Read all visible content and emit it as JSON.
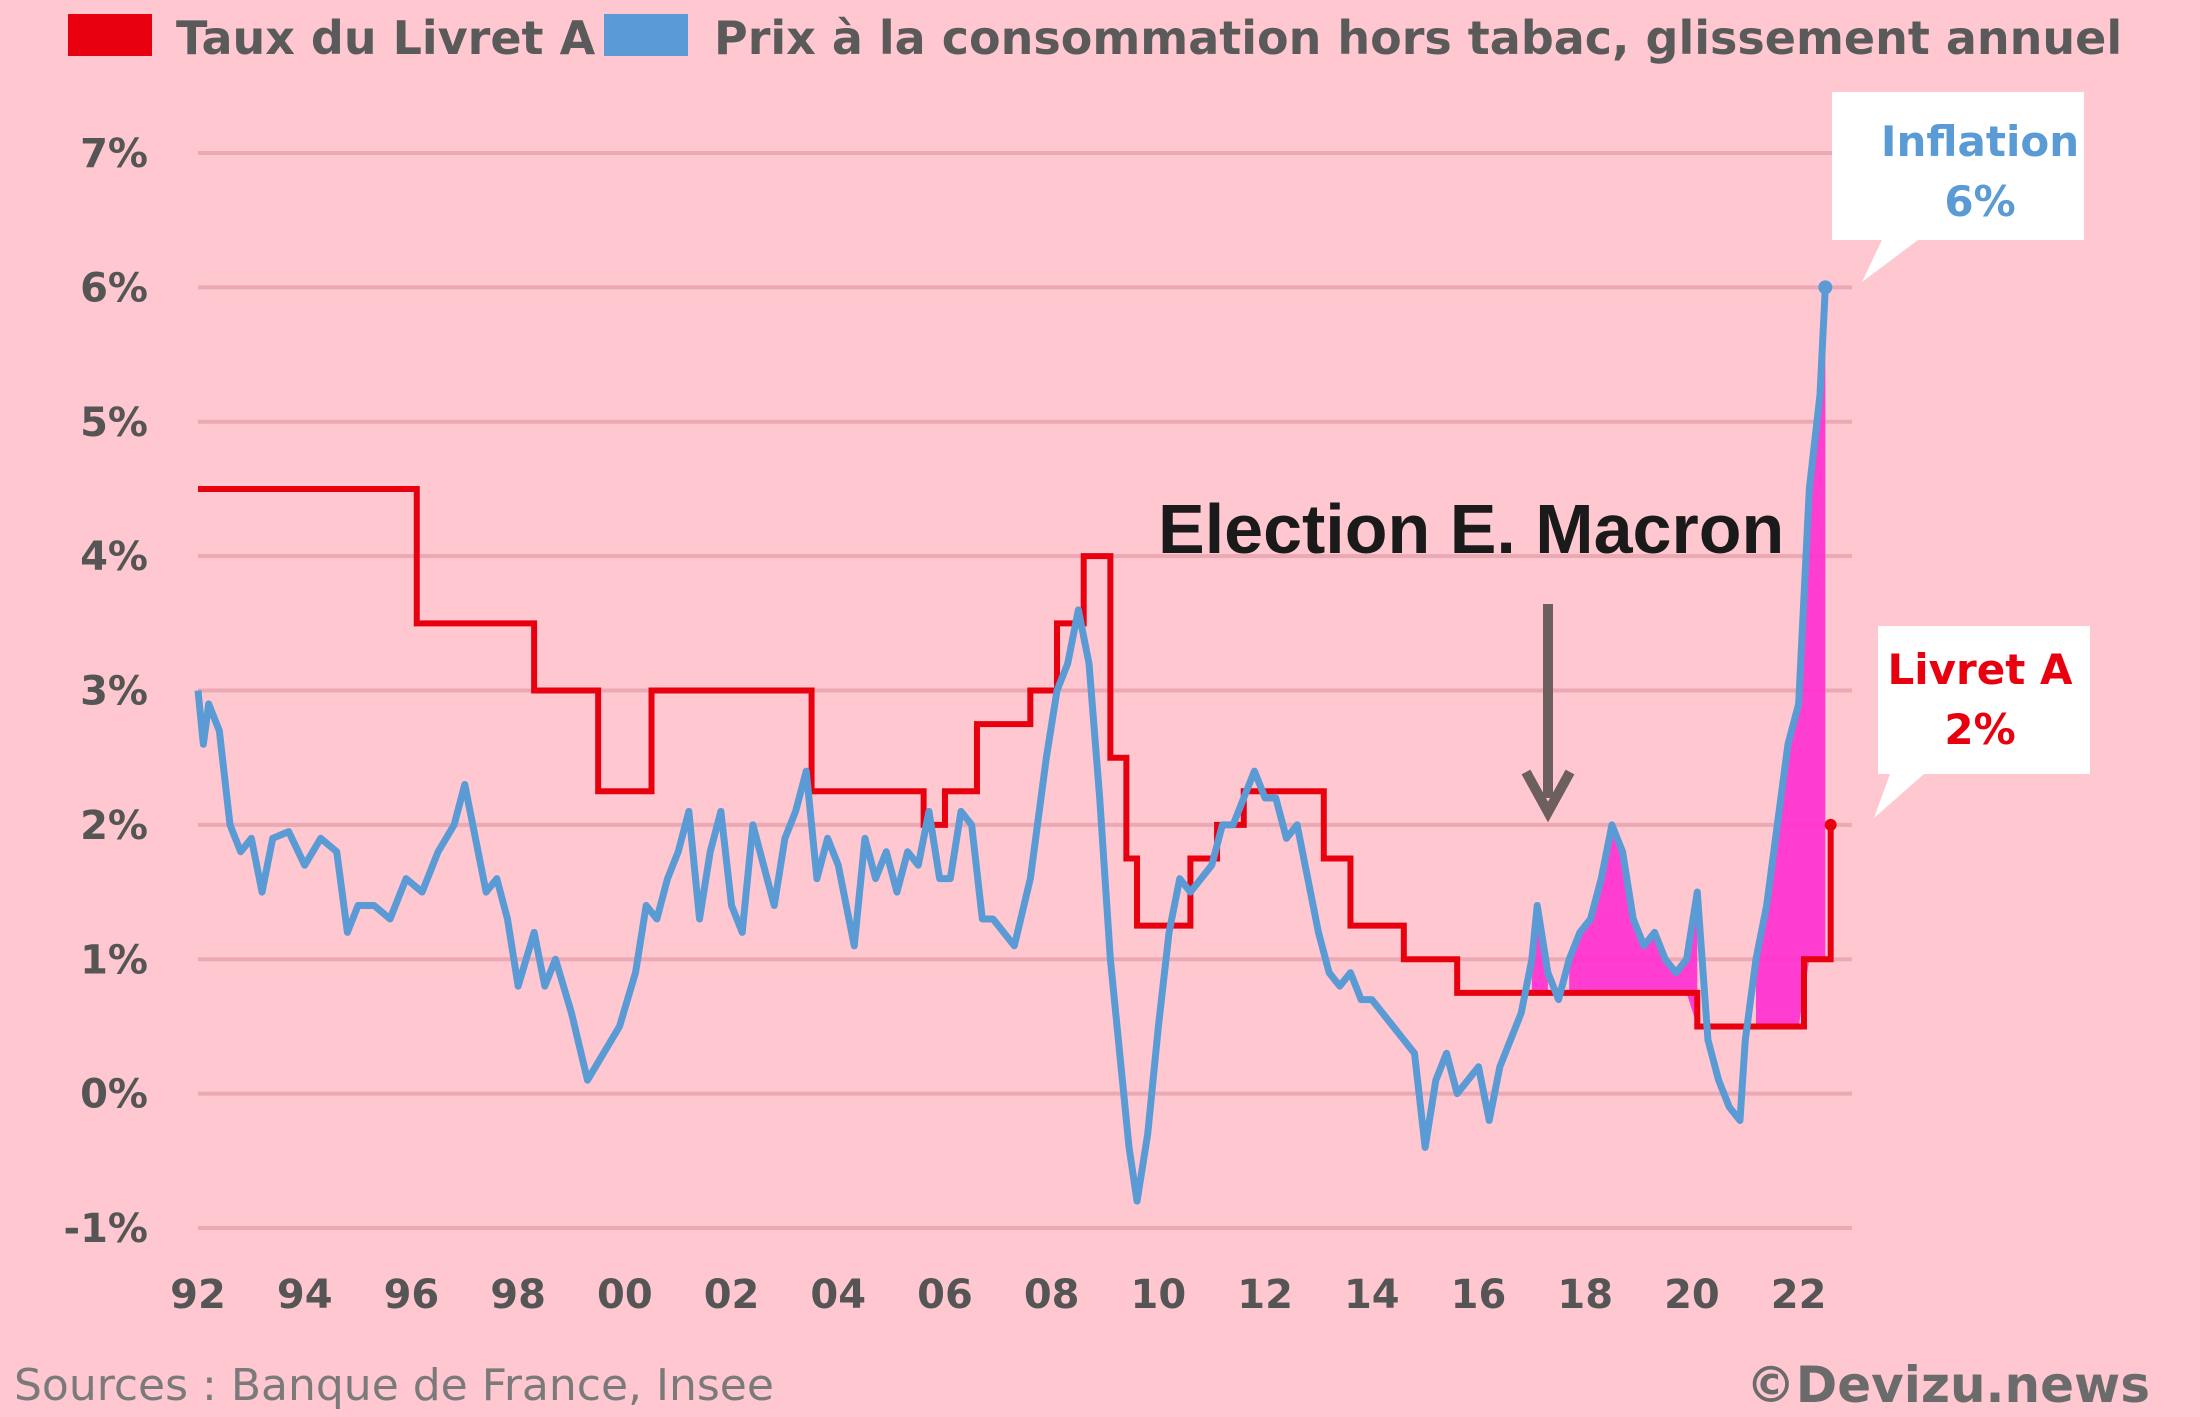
{
  "chart_data": {
    "type": "line",
    "legend": [
      {
        "label": "Taux du Livret A",
        "color": "#e8000f"
      },
      {
        "label": "Prix à la consommation hors tabac, glissement annuel",
        "color": "#5b9bd5"
      }
    ],
    "ylim": [
      -1,
      7
    ],
    "yticks": [
      -1,
      0,
      1,
      2,
      3,
      4,
      5,
      6,
      7
    ],
    "ytick_labels": [
      "-1%",
      "0%",
      "1%",
      "2%",
      "3%",
      "4%",
      "5%",
      "6%",
      "7%"
    ],
    "xlim": [
      1992,
      2023
    ],
    "xticks": [
      1992,
      1994,
      1996,
      1998,
      2000,
      2002,
      2004,
      2006,
      2008,
      2010,
      2012,
      2014,
      2016,
      2018,
      2020,
      2022
    ],
    "xtick_labels": [
      "92",
      "94",
      "96",
      "98",
      "00",
      "02",
      "04",
      "06",
      "08",
      "10",
      "12",
      "14",
      "16",
      "18",
      "20",
      "22"
    ],
    "series": [
      {
        "name": "Taux du Livret A",
        "color": "#e8000f",
        "step": true,
        "points": [
          [
            1992.0,
            4.5
          ],
          [
            1996.1,
            3.5
          ],
          [
            1998.3,
            3.0
          ],
          [
            1999.5,
            2.25
          ],
          [
            2000.5,
            3.0
          ],
          [
            2003.5,
            2.25
          ],
          [
            2005.6,
            2.0
          ],
          [
            2006.0,
            2.25
          ],
          [
            2006.6,
            2.75
          ],
          [
            2007.6,
            3.0
          ],
          [
            2008.1,
            3.5
          ],
          [
            2008.6,
            4.0
          ],
          [
            2009.1,
            2.5
          ],
          [
            2009.4,
            1.75
          ],
          [
            2009.6,
            1.25
          ],
          [
            2010.6,
            1.75
          ],
          [
            2011.1,
            2.0
          ],
          [
            2011.6,
            2.25
          ],
          [
            2013.1,
            1.75
          ],
          [
            2013.6,
            1.25
          ],
          [
            2014.6,
            1.0
          ],
          [
            2015.6,
            0.75
          ],
          [
            2020.1,
            0.5
          ],
          [
            2022.1,
            1.0
          ],
          [
            2022.6,
            2.0
          ]
        ]
      },
      {
        "name": "Prix à la consommation hors tabac, glissement annuel",
        "color": "#5b9bd5",
        "step": false,
        "points": [
          [
            1992.0,
            3.0
          ],
          [
            1992.1,
            2.6
          ],
          [
            1992.2,
            2.9
          ],
          [
            1992.4,
            2.7
          ],
          [
            1992.6,
            2.0
          ],
          [
            1992.8,
            1.8
          ],
          [
            1993.0,
            1.9
          ],
          [
            1993.2,
            1.5
          ],
          [
            1993.4,
            1.9
          ],
          [
            1993.7,
            1.95
          ],
          [
            1994.0,
            1.7
          ],
          [
            1994.3,
            1.9
          ],
          [
            1994.6,
            1.8
          ],
          [
            1994.8,
            1.2
          ],
          [
            1995.0,
            1.4
          ],
          [
            1995.3,
            1.4
          ],
          [
            1995.6,
            1.3
          ],
          [
            1995.9,
            1.6
          ],
          [
            1996.2,
            1.5
          ],
          [
            1996.5,
            1.8
          ],
          [
            1996.8,
            2.0
          ],
          [
            1997.0,
            2.3
          ],
          [
            1997.2,
            1.9
          ],
          [
            1997.4,
            1.5
          ],
          [
            1997.6,
            1.6
          ],
          [
            1997.8,
            1.3
          ],
          [
            1998.0,
            0.8
          ],
          [
            1998.3,
            1.2
          ],
          [
            1998.5,
            0.8
          ],
          [
            1998.7,
            1.0
          ],
          [
            1999.0,
            0.6
          ],
          [
            1999.3,
            0.1
          ],
          [
            1999.6,
            0.3
          ],
          [
            1999.9,
            0.5
          ],
          [
            2000.2,
            0.9
          ],
          [
            2000.4,
            1.4
          ],
          [
            2000.6,
            1.3
          ],
          [
            2000.8,
            1.6
          ],
          [
            2001.0,
            1.8
          ],
          [
            2001.2,
            2.1
          ],
          [
            2001.4,
            1.3
          ],
          [
            2001.6,
            1.8
          ],
          [
            2001.8,
            2.1
          ],
          [
            2002.0,
            1.4
          ],
          [
            2002.2,
            1.2
          ],
          [
            2002.4,
            2.0
          ],
          [
            2002.6,
            1.7
          ],
          [
            2002.8,
            1.4
          ],
          [
            2003.0,
            1.9
          ],
          [
            2003.2,
            2.1
          ],
          [
            2003.4,
            2.4
          ],
          [
            2003.6,
            1.6
          ],
          [
            2003.8,
            1.9
          ],
          [
            2004.0,
            1.7
          ],
          [
            2004.3,
            1.1
          ],
          [
            2004.5,
            1.9
          ],
          [
            2004.7,
            1.6
          ],
          [
            2004.9,
            1.8
          ],
          [
            2005.1,
            1.5
          ],
          [
            2005.3,
            1.8
          ],
          [
            2005.5,
            1.7
          ],
          [
            2005.7,
            2.1
          ],
          [
            2005.9,
            1.6
          ],
          [
            2006.1,
            1.6
          ],
          [
            2006.3,
            2.1
          ],
          [
            2006.5,
            2.0
          ],
          [
            2006.7,
            1.3
          ],
          [
            2006.9,
            1.3
          ],
          [
            2007.1,
            1.2
          ],
          [
            2007.3,
            1.1
          ],
          [
            2007.6,
            1.6
          ],
          [
            2007.9,
            2.5
          ],
          [
            2008.1,
            3.0
          ],
          [
            2008.3,
            3.2
          ],
          [
            2008.5,
            3.6
          ],
          [
            2008.7,
            3.2
          ],
          [
            2008.9,
            2.2
          ],
          [
            2009.1,
            1.0
          ],
          [
            2009.3,
            0.2
          ],
          [
            2009.45,
            -0.4
          ],
          [
            2009.6,
            -0.8
          ],
          [
            2009.8,
            -0.3
          ],
          [
            2010.0,
            0.5
          ],
          [
            2010.2,
            1.2
          ],
          [
            2010.4,
            1.6
          ],
          [
            2010.6,
            1.5
          ],
          [
            2010.8,
            1.6
          ],
          [
            2011.0,
            1.7
          ],
          [
            2011.2,
            2.0
          ],
          [
            2011.4,
            2.0
          ],
          [
            2011.6,
            2.2
          ],
          [
            2011.8,
            2.4
          ],
          [
            2012.0,
            2.2
          ],
          [
            2012.2,
            2.2
          ],
          [
            2012.4,
            1.9
          ],
          [
            2012.6,
            2.0
          ],
          [
            2012.8,
            1.6
          ],
          [
            2013.0,
            1.2
          ],
          [
            2013.2,
            0.9
          ],
          [
            2013.4,
            0.8
          ],
          [
            2013.6,
            0.9
          ],
          [
            2013.8,
            0.7
          ],
          [
            2014.0,
            0.7
          ],
          [
            2014.2,
            0.6
          ],
          [
            2014.4,
            0.5
          ],
          [
            2014.6,
            0.4
          ],
          [
            2014.8,
            0.3
          ],
          [
            2015.0,
            -0.4
          ],
          [
            2015.2,
            0.1
          ],
          [
            2015.4,
            0.3
          ],
          [
            2015.6,
            0.0
          ],
          [
            2015.8,
            0.1
          ],
          [
            2016.0,
            0.2
          ],
          [
            2016.2,
            -0.2
          ],
          [
            2016.4,
            0.2
          ],
          [
            2016.6,
            0.4
          ],
          [
            2016.8,
            0.6
          ],
          [
            2017.0,
            1.0
          ],
          [
            2017.1,
            1.4
          ],
          [
            2017.3,
            0.9
          ],
          [
            2017.5,
            0.7
          ],
          [
            2017.7,
            1.0
          ],
          [
            2017.9,
            1.2
          ],
          [
            2018.1,
            1.3
          ],
          [
            2018.3,
            1.6
          ],
          [
            2018.5,
            2.0
          ],
          [
            2018.7,
            1.8
          ],
          [
            2018.9,
            1.3
          ],
          [
            2019.1,
            1.1
          ],
          [
            2019.3,
            1.2
          ],
          [
            2019.5,
            1.0
          ],
          [
            2019.7,
            0.9
          ],
          [
            2019.9,
            1.0
          ],
          [
            2020.1,
            1.5
          ],
          [
            2020.3,
            0.4
          ],
          [
            2020.5,
            0.1
          ],
          [
            2020.7,
            -0.1
          ],
          [
            2020.9,
            -0.2
          ],
          [
            2021.0,
            0.4
          ],
          [
            2021.2,
            1.0
          ],
          [
            2021.4,
            1.4
          ],
          [
            2021.6,
            2.0
          ],
          [
            2021.8,
            2.6
          ],
          [
            2022.0,
            2.9
          ],
          [
            2022.2,
            4.5
          ],
          [
            2022.4,
            5.2
          ],
          [
            2022.5,
            6.0
          ]
        ]
      }
    ],
    "annotations": {
      "election_label": "Election E. Macron",
      "inflation_title": "Inflation",
      "inflation_value": "6%",
      "livret_title": "Livret A",
      "livret_value": "2%"
    },
    "source": "Sources : Banque de France, Insee",
    "credit": "©Devizu.news"
  }
}
